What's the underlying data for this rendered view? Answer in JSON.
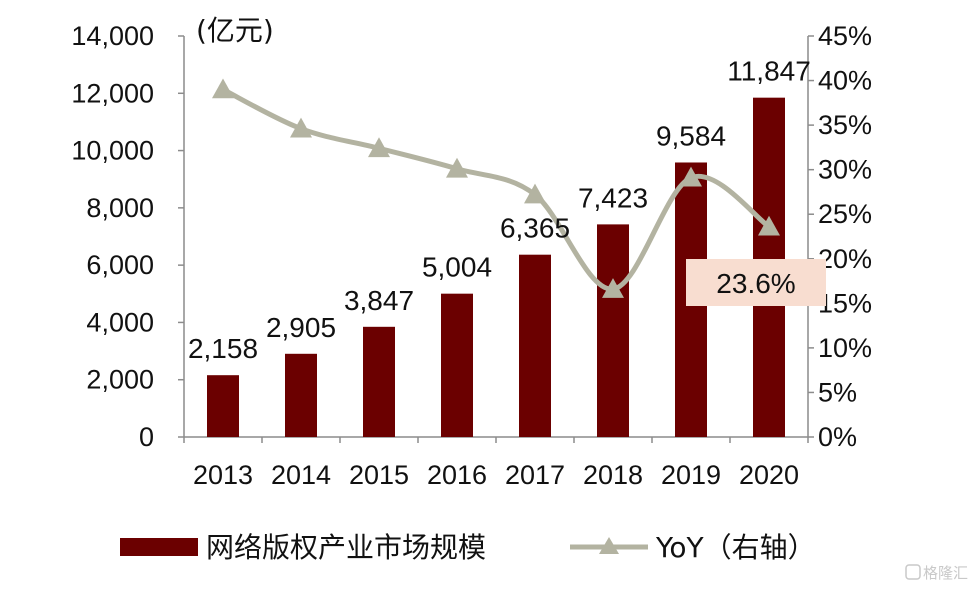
{
  "chart_data": {
    "type": "bar",
    "categories": [
      "2013",
      "2014",
      "2015",
      "2016",
      "2017",
      "2018",
      "2019",
      "2020"
    ],
    "series": [
      {
        "name": "网络版权产业市场规模",
        "type": "bar",
        "axis": "left",
        "values": [
          2158,
          2905,
          3847,
          5004,
          6365,
          7423,
          9584,
          11847
        ],
        "labels": [
          "2,158",
          "2,905",
          "3,847",
          "5,004",
          "6,365",
          "7,423",
          "9,584",
          "11,847"
        ],
        "color": "#6b0000"
      },
      {
        "name": "YoY（右轴）",
        "type": "line",
        "axis": "right",
        "smooth": true,
        "marker": "triangle",
        "values": [
          39.0,
          34.6,
          32.4,
          30.1,
          27.2,
          16.6,
          29.1,
          23.6
        ],
        "color": "#b3b3a1"
      }
    ],
    "left_axis": {
      "unit_label": "(亿元)",
      "ylim": [
        0,
        14000
      ],
      "ticks": [
        "0",
        "2,000",
        "4,000",
        "6,000",
        "8,000",
        "10,000",
        "12,000",
        "14,000"
      ]
    },
    "right_axis": {
      "ylim": [
        0,
        45
      ],
      "ticks": [
        "0%",
        "5%",
        "10%",
        "15%",
        "20%",
        "25%",
        "30%",
        "35%",
        "40%",
        "45%"
      ]
    },
    "highlight_label": {
      "text": "23.6%",
      "color": "#f8ddd0"
    },
    "legend": {
      "placement": "bottom",
      "items": [
        {
          "label": "网络版权产业市场规模",
          "swatch": "bar"
        },
        {
          "label": "YoY（右轴）",
          "swatch": "line-triangle"
        }
      ]
    },
    "grid": false
  },
  "watermark": {
    "text": "格隆汇"
  }
}
